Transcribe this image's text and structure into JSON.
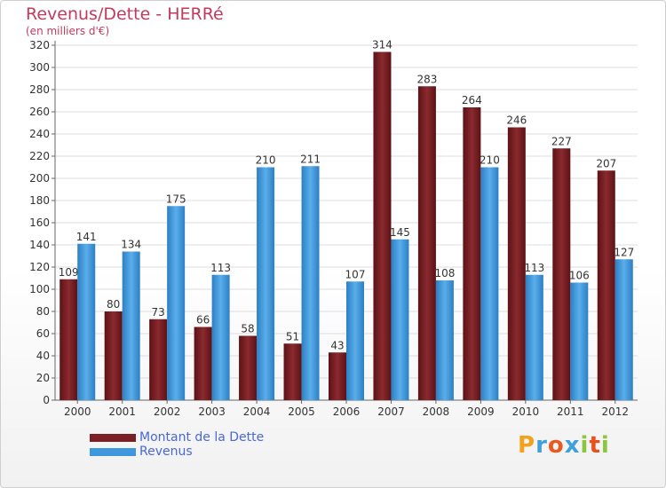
{
  "chart_data": {
    "type": "bar",
    "title": "Revenus/Dette - HERRé",
    "subtitle": "(en milliers d'€)",
    "categories": [
      "2000",
      "2001",
      "2002",
      "2003",
      "2004",
      "2005",
      "2006",
      "2007",
      "2008",
      "2009",
      "2010",
      "2011",
      "2012"
    ],
    "series": [
      {
        "name": "Montant de la Dette",
        "color": "#7a1f23",
        "values": [
          109,
          80,
          73,
          66,
          58,
          51,
          43,
          314,
          283,
          264,
          246,
          227,
          207
        ]
      },
      {
        "name": "Revenus",
        "color": "#3f97de",
        "values": [
          141,
          134,
          175,
          113,
          210,
          211,
          107,
          145,
          108,
          210,
          113,
          106,
          127
        ]
      }
    ],
    "ylim": [
      0,
      320
    ],
    "ytick_step": 20,
    "grid": true,
    "xlabel": "",
    "ylabel": "",
    "legend_position": "bottom-left"
  },
  "brand": {
    "letters": [
      "P",
      "r",
      "o",
      "x",
      "i",
      "t",
      "i"
    ],
    "colors": [
      "#f3a21c",
      "#3fa0dc",
      "#e85a1e",
      "#3fa0dc",
      "#8cc63f",
      "#e8501e",
      "#8cc63f"
    ]
  }
}
